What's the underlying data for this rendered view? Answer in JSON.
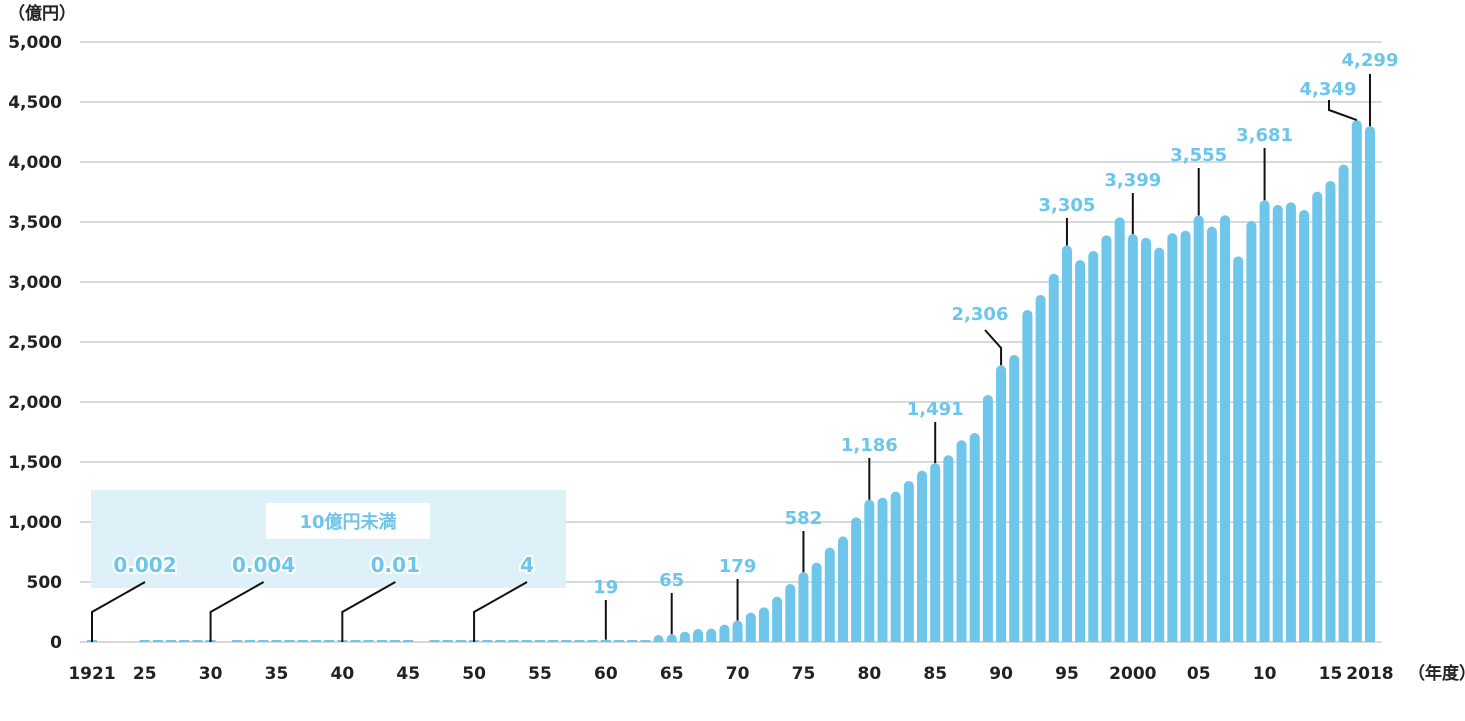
{
  "chart_data": {
    "type": "bar",
    "ylabel": "（億円）",
    "xlabel": "（年度）",
    "ylim": [
      0,
      5000
    ],
    "yticks": [
      0,
      500,
      1000,
      1500,
      2000,
      2500,
      3000,
      3500,
      4000,
      4500,
      5000
    ],
    "ytick_labels": [
      "0",
      "500",
      "1,000",
      "1,500",
      "2,000",
      "2,500",
      "3,000",
      "3,500",
      "4,000",
      "4,500",
      "5,000"
    ],
    "xticks": [
      {
        "year": 1921,
        "label": "1921"
      },
      {
        "year": 1925,
        "label": "25"
      },
      {
        "year": 1930,
        "label": "30"
      },
      {
        "year": 1935,
        "label": "35"
      },
      {
        "year": 1940,
        "label": "40"
      },
      {
        "year": 1945,
        "label": "45"
      },
      {
        "year": 1950,
        "label": "50"
      },
      {
        "year": 1955,
        "label": "55"
      },
      {
        "year": 1960,
        "label": "60"
      },
      {
        "year": 1965,
        "label": "65"
      },
      {
        "year": 1970,
        "label": "70"
      },
      {
        "year": 1975,
        "label": "75"
      },
      {
        "year": 1980,
        "label": "80"
      },
      {
        "year": 1985,
        "label": "85"
      },
      {
        "year": 1990,
        "label": "90"
      },
      {
        "year": 1995,
        "label": "95"
      },
      {
        "year": 2000,
        "label": "2000"
      },
      {
        "year": 2005,
        "label": "05"
      },
      {
        "year": 2010,
        "label": "10"
      },
      {
        "year": 2015,
        "label": "15"
      },
      {
        "year": 2018,
        "label": "2018"
      }
    ],
    "grid": true,
    "bar_color": "#6ec6ea",
    "label_color": "#6cc5ea",
    "x_start": 1921,
    "values": [
      0.002,
      null,
      null,
      null,
      0.003,
      0.003,
      0.003,
      0.003,
      0.003,
      0.004,
      null,
      0.005,
      0.005,
      0.005,
      0.006,
      0.006,
      0.007,
      0.008,
      0.009,
      0.01,
      0.5,
      1,
      1,
      1,
      1,
      null,
      2,
      2,
      3,
      4,
      5,
      5,
      6,
      6,
      7,
      8,
      10,
      12,
      15,
      19,
      25,
      40,
      45,
      58,
      65,
      86,
      108,
      111,
      145,
      179,
      245,
      289,
      378,
      483,
      582,
      661,
      786,
      880,
      1039,
      1186,
      1203,
      1253,
      1342,
      1428,
      1491,
      1556,
      1681,
      1742,
      2058,
      2306,
      2392,
      2767,
      2892,
      3069,
      3305,
      3183,
      3258,
      3389,
      3539,
      3399,
      3369,
      3286,
      3406,
      3428,
      3555,
      3461,
      3556,
      3214,
      3508,
      3681,
      3642,
      3664,
      3600,
      3753,
      3842,
      3978,
      4349,
      4299
    ],
    "annotations": [
      {
        "year": 1921,
        "label": "0.002"
      },
      {
        "year": 1930,
        "label": "0.004"
      },
      {
        "year": 1940,
        "label": "0.01"
      },
      {
        "year": 1950,
        "label": "4"
      },
      {
        "year": 1960,
        "label": "19"
      },
      {
        "year": 1965,
        "label": "65"
      },
      {
        "year": 1970,
        "label": "179"
      },
      {
        "year": 1975,
        "label": "582"
      },
      {
        "year": 1980,
        "label": "1,186"
      },
      {
        "year": 1985,
        "label": "1,491"
      },
      {
        "year": 1990,
        "label": "2,306"
      },
      {
        "year": 1995,
        "label": "3,305"
      },
      {
        "year": 2000,
        "label": "3,399"
      },
      {
        "year": 2005,
        "label": "3,555"
      },
      {
        "year": 2010,
        "label": "3,681"
      },
      {
        "year": 2017,
        "label": "4,349"
      },
      {
        "year": 2018,
        "label": "4,299"
      }
    ],
    "small_region_label": "10億円未満",
    "small_region_color": "#def0f8"
  }
}
